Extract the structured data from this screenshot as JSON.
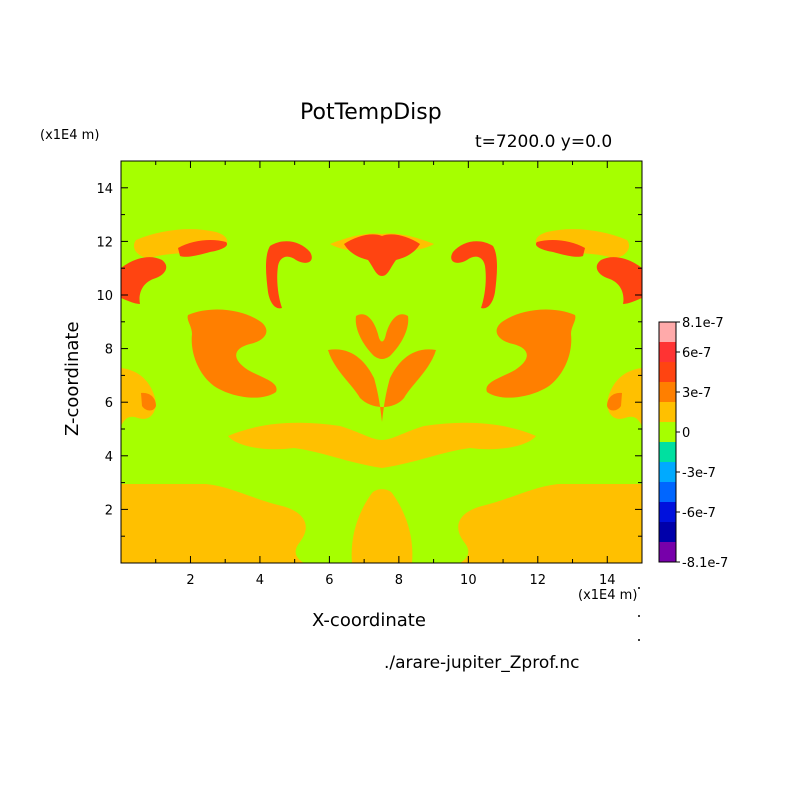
{
  "chart_data": {
    "type": "heatmap",
    "title": "PotTempDisp",
    "subtitle": "t=7200.0 y=0.0",
    "xlabel": "X-coordinate",
    "ylabel": "Z-coordinate",
    "x_unit": "(x1E4 m)",
    "y_unit": "(x1E4 m)",
    "xlim": [
      0,
      15
    ],
    "ylim": [
      0,
      15
    ],
    "x_ticks": [
      2,
      4,
      6,
      8,
      10,
      12,
      14
    ],
    "y_ticks": [
      2,
      4,
      6,
      8,
      10,
      12,
      14
    ],
    "colorbar": {
      "ticks": [
        "8.1e-7",
        "6e-7",
        "3e-7",
        "0",
        "-3e-7",
        "-6e-7",
        "-8.1e-7"
      ],
      "level_colors": [
        "#ffaaaa",
        "#ff3333",
        "#ff4411",
        "#ff7f00",
        "#ffc000",
        "#a6ff00",
        "#00e0a0",
        "#00aaff",
        "#0066ff",
        "#0011dd",
        "#0000aa",
        "#7700aa"
      ]
    },
    "field_colors": {
      "background": "#a6ff00",
      "band_3e7": "#ffc000",
      "band_4e7": "#ff7f00",
      "band_6e7": "#ff4411"
    }
  },
  "footer": "./arare-jupiter_Zprof.nc"
}
